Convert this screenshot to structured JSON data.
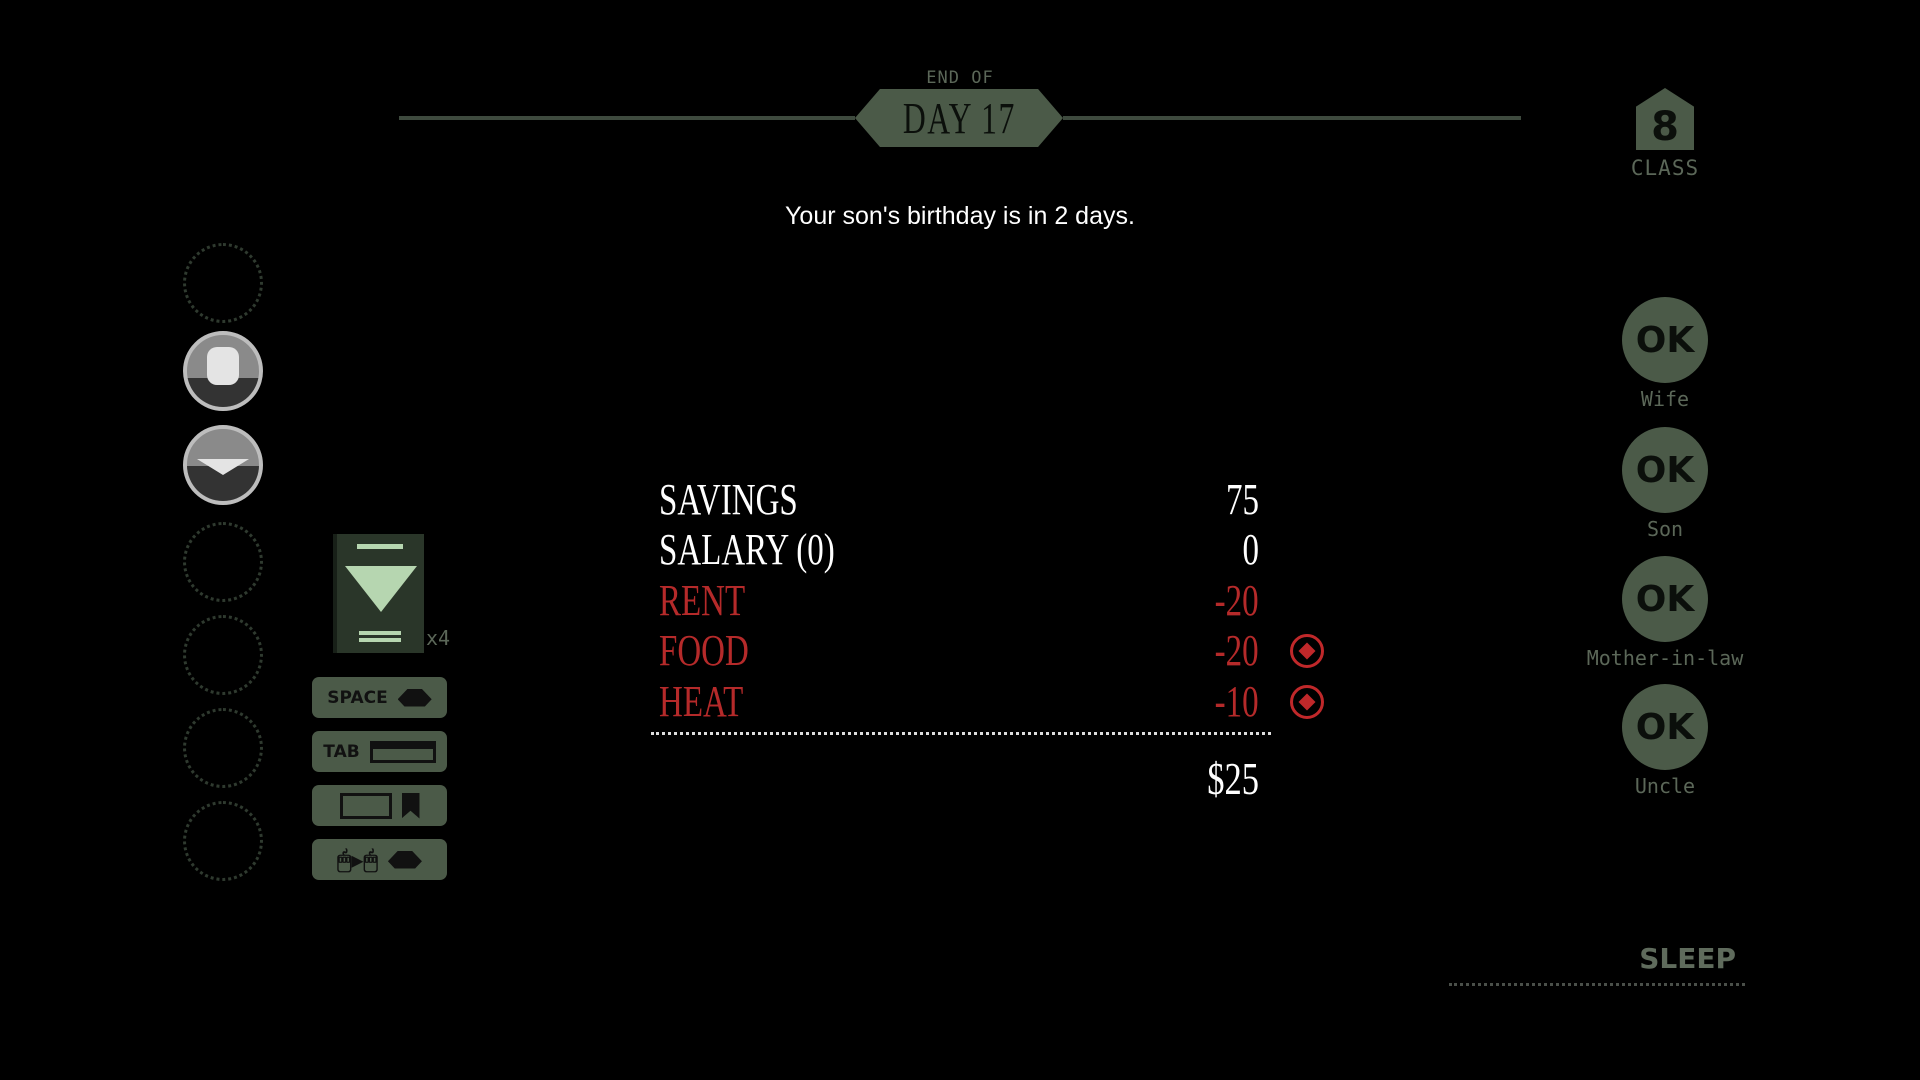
{
  "header": {
    "end_of": "END OF",
    "day": "DAY 17"
  },
  "message": "Your son's birthday is in 2 days.",
  "class": {
    "number": "8",
    "label": "CLASS"
  },
  "ledger": {
    "rows": [
      {
        "label": "SAVINGS",
        "value": "75",
        "color": "#ffffff",
        "toggle": false
      },
      {
        "label": "SALARY (0)",
        "value": "0",
        "color": "#ffffff",
        "toggle": false
      },
      {
        "label": "RENT",
        "value": "-20",
        "color": "#b52a2a",
        "toggle": false
      },
      {
        "label": "FOOD",
        "value": "-20",
        "color": "#b52a2a",
        "toggle": true
      },
      {
        "label": "HEAT",
        "value": "-10",
        "color": "#b52a2a",
        "toggle": true
      }
    ],
    "total": "$25"
  },
  "family": [
    {
      "status": "OK",
      "name": "Wife"
    },
    {
      "status": "OK",
      "name": "Son"
    },
    {
      "status": "OK",
      "name": "Mother-in-law"
    },
    {
      "status": "OK",
      "name": "Uncle"
    }
  ],
  "inventory": {
    "passport_count": "x4"
  },
  "controls": {
    "space": "SPACE",
    "tab": "TAB"
  },
  "sleep_label": "SLEEP",
  "colors": {
    "accent_green": "#4b5a48",
    "expense_red": "#b52a2a",
    "muted_text": "#5b6758"
  }
}
